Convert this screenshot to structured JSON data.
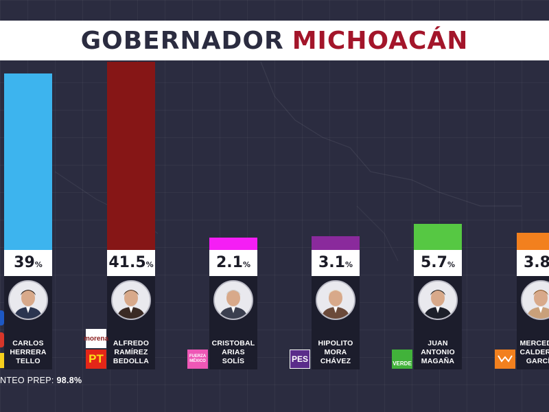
{
  "header": {
    "title_part1": "GOBERNADOR",
    "title_part2": "MICHOACÁN"
  },
  "colors": {
    "title_accent": "#a3152a",
    "background": "#2b2c40"
  },
  "chart_data": {
    "type": "bar",
    "title": "GOBERNADOR MICHOACÁN",
    "ylim": [
      0,
      50
    ],
    "unit": "%",
    "categories": [
      "CARLOS HERRERA TELLO",
      "ALFREDO RAMÍREZ BEDOLLA",
      "CRISTOBAL ARIAS SOLÍS",
      "HIPOLITO MORA CHÁVEZ",
      "JUAN ANTONIO MAGAÑA",
      "MERCEDES CALDERÓN GARCÍA"
    ],
    "values": [
      39,
      41.5,
      2.1,
      3.1,
      5.7,
      3.8
    ],
    "value_labels": [
      "39",
      "41.5",
      "2.1",
      "3.1",
      "5.7",
      "3.8"
    ],
    "bar_colors": [
      "#3db4ee",
      "#861616",
      "#f51ef5",
      "#8a2a9c",
      "#56c843",
      "#f2801e"
    ]
  },
  "candidates": [
    {
      "name_lines": [
        "CARLOS",
        "HERRERA",
        "TELLO"
      ],
      "icon": "person-photo-icon"
    },
    {
      "name_lines": [
        "ALFREDO",
        "RAMÍREZ",
        "BEDOLLA"
      ],
      "icon": "person-photo-icon",
      "logos": [
        "morena",
        "PT"
      ]
    },
    {
      "name_lines": [
        "CRISTOBAL",
        "ARIAS",
        "SOLÍS"
      ],
      "icon": "person-photo-icon",
      "logos": [
        "FUERZA MÉXICO"
      ]
    },
    {
      "name_lines": [
        "HIPOLITO",
        "MORA",
        "CHÁVEZ"
      ],
      "icon": "person-photo-icon",
      "logos": [
        "PES"
      ]
    },
    {
      "name_lines": [
        "JUAN",
        "ANTONIO",
        "MAGAÑA"
      ],
      "icon": "person-photo-icon",
      "logos": [
        "VERDE"
      ]
    },
    {
      "name_lines": [
        "MERCEDES",
        "CALDERÓN",
        "GARCÍA"
      ],
      "icon": "person-photo-icon",
      "visible_name_lines": [
        "MERCED",
        "CALDER",
        "GARC"
      ]
    }
  ],
  "footer": {
    "count_label": "NTEO PREP:",
    "count_value": "98.8%"
  }
}
